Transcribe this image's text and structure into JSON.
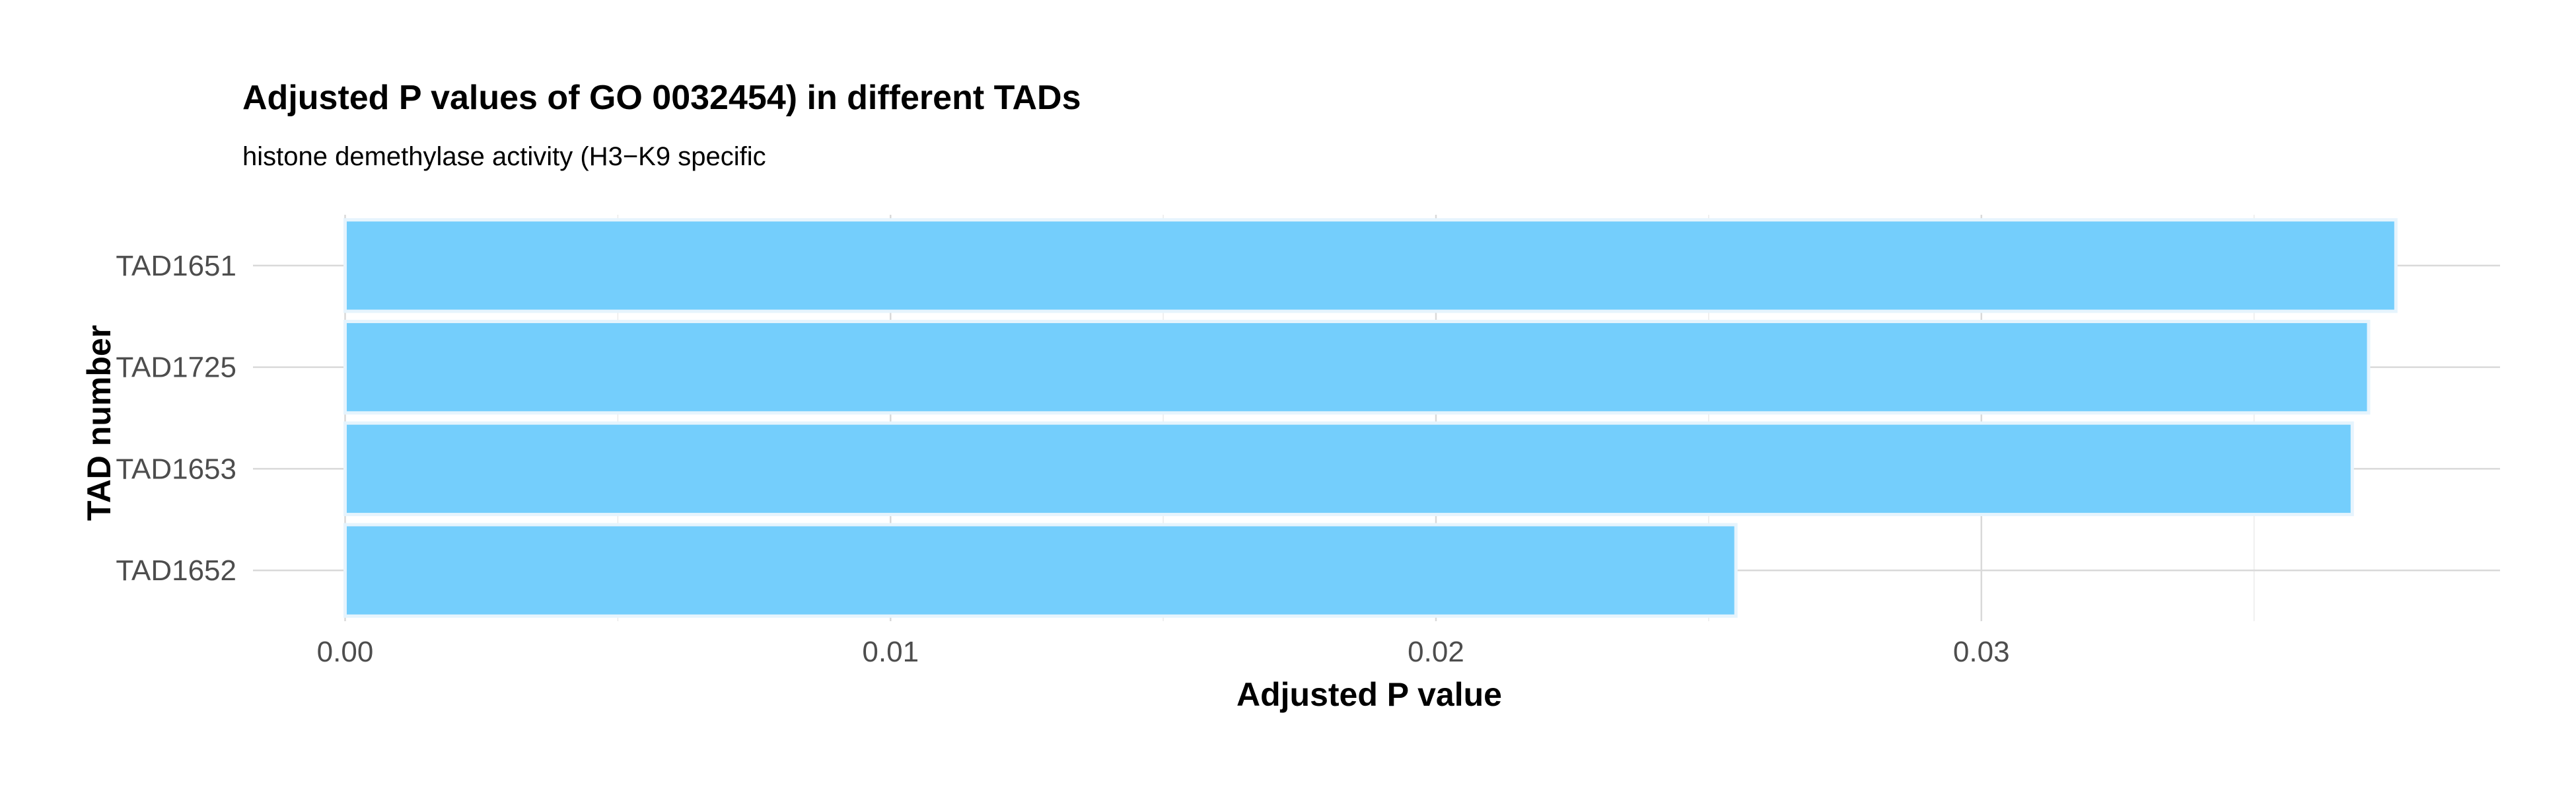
{
  "chart_data": {
    "type": "bar",
    "orientation": "horizontal",
    "title": "Adjusted P values of GO 0032454) in different TADs",
    "subtitle": "histone demethylase activity (H3−K9 specific",
    "xlabel": "Adjusted P value",
    "ylabel": "TAD number",
    "categories": [
      "TAD1651",
      "TAD1725",
      "TAD1653",
      "TAD1652"
    ],
    "values": [
      0.0376,
      0.0371,
      0.0368,
      0.0255
    ],
    "xlim": [
      0,
      0.0395
    ],
    "x_ticks": [
      0,
      0.01,
      0.02,
      0.03
    ],
    "x_tick_labels": [
      "0.00",
      "0.01",
      "0.02",
      "0.03"
    ],
    "grid": true,
    "legend": "none",
    "bar_color": "#74cefc",
    "bar_edge_color": "#e6f4fd"
  }
}
